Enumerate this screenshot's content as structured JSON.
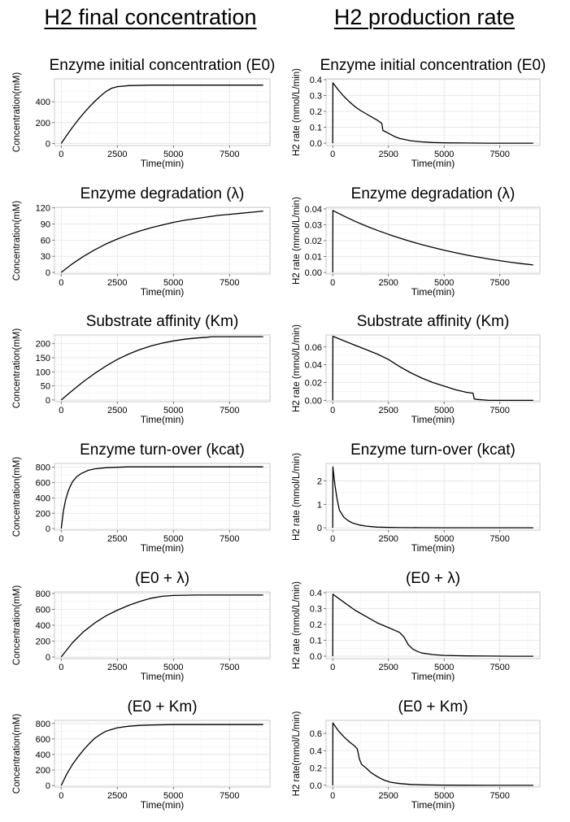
{
  "headers": {
    "left": "H2 final concentration",
    "right": "H2 production rate"
  },
  "chart_data": [
    {
      "type": "line",
      "title": "Enzyme initial concentration (E0)",
      "xlabel": "Time(min)",
      "ylabel": "Concentration(mM)",
      "xlim": [
        -300,
        9300
      ],
      "ylim": [
        -20,
        620
      ],
      "xticks": [
        0,
        2500,
        5000,
        7500
      ],
      "yticks": [
        0,
        200,
        400
      ],
      "ytick_labels": [
        "0",
        "200",
        "400"
      ],
      "grid": true,
      "series": [
        {
          "x": [
            0,
            250,
            500,
            750,
            1000,
            1250,
            1500,
            1750,
            2000,
            2250,
            2500,
            3000,
            4000,
            5000,
            6000,
            7000,
            8000,
            9000
          ],
          "y": [
            0,
            80,
            155,
            225,
            290,
            350,
            405,
            455,
            500,
            530,
            545,
            555,
            560,
            560,
            560,
            560,
            560,
            560
          ]
        }
      ]
    },
    {
      "type": "line",
      "title": "Enzyme initial concentration (E0)",
      "xlabel": "Time(min)",
      "ylabel": "H2 rate (mmol/L/min)",
      "xlim": [
        -300,
        9300
      ],
      "ylim": [
        -0.015,
        0.405
      ],
      "xticks": [
        0,
        2500,
        5000,
        7500
      ],
      "yticks": [
        0,
        0.1,
        0.2,
        0.3,
        0.4
      ],
      "ytick_labels": [
        "0.0",
        "0.1",
        "0.2",
        "0.3",
        "0.4"
      ],
      "grid": true,
      "series": [
        {
          "x": [
            0,
            5,
            250,
            500,
            750,
            1000,
            1250,
            1500,
            1750,
            2000,
            2200,
            2250,
            2400,
            2600,
            2800,
            3000,
            3500,
            4000,
            4500,
            5000,
            6000,
            7000,
            8000,
            9000
          ],
          "y": [
            0,
            0.38,
            0.335,
            0.295,
            0.26,
            0.23,
            0.205,
            0.185,
            0.165,
            0.145,
            0.125,
            0.08,
            0.07,
            0.055,
            0.04,
            0.03,
            0.015,
            0.008,
            0.004,
            0.002,
            0.001,
            0,
            0,
            0
          ]
        }
      ]
    },
    {
      "type": "line",
      "title": "Enzyme degradation (λ)",
      "xlabel": "Time(min)",
      "ylabel": "Concentration(mM)",
      "xlim": [
        -300,
        9300
      ],
      "ylim": [
        -3,
        121
      ],
      "xticks": [
        0,
        2500,
        5000,
        7500
      ],
      "yticks": [
        0,
        30,
        60,
        90,
        120
      ],
      "ytick_labels": [
        "0",
        "30",
        "60",
        "90",
        "120"
      ],
      "grid": true,
      "series": [
        {
          "x": [
            0,
            500,
            1000,
            1500,
            2000,
            2500,
            3000,
            3500,
            4000,
            4500,
            5000,
            5500,
            6000,
            6500,
            7000,
            7500,
            8000,
            8500,
            9000
          ],
          "y": [
            0,
            16,
            30,
            42,
            53,
            62,
            70,
            77,
            83,
            88,
            93,
            97,
            100,
            103,
            106,
            108,
            110,
            112,
            114
          ]
        }
      ]
    },
    {
      "type": "line",
      "title": "Enzyme degradation (λ)",
      "xlabel": "Time(min)",
      "ylabel": "H2 rate (mmol/L/min)",
      "xlim": [
        -300,
        9300
      ],
      "ylim": [
        -0.001,
        0.041
      ],
      "xticks": [
        0,
        2500,
        5000,
        7500
      ],
      "yticks": [
        0,
        0.01,
        0.02,
        0.03,
        0.04
      ],
      "ytick_labels": [
        "0.00",
        "0.01",
        "0.02",
        "0.03",
        "0.04"
      ],
      "grid": true,
      "series": [
        {
          "x": [
            0,
            5,
            500,
            1000,
            1500,
            2000,
            2500,
            3000,
            3500,
            4000,
            4500,
            5000,
            5500,
            6000,
            6500,
            7000,
            7500,
            8000,
            8500,
            9000
          ],
          "y": [
            0,
            0.039,
            0.0355,
            0.0322,
            0.0292,
            0.0265,
            0.024,
            0.0217,
            0.0195,
            0.0175,
            0.0157,
            0.014,
            0.0124,
            0.011,
            0.0097,
            0.0085,
            0.0074,
            0.0064,
            0.0055,
            0.0047
          ]
        }
      ]
    },
    {
      "type": "line",
      "title": "Substrate affinity (Km)",
      "xlabel": "Time(min)",
      "ylabel": "Concentration(mM)",
      "xlim": [
        -300,
        9300
      ],
      "ylim": [
        -6,
        231
      ],
      "xticks": [
        0,
        2500,
        5000,
        7500
      ],
      "yticks": [
        0,
        50,
        100,
        150,
        200
      ],
      "ytick_labels": [
        "0",
        "50",
        "100",
        "150",
        "200"
      ],
      "grid": true,
      "series": [
        {
          "x": [
            0,
            500,
            1000,
            1500,
            2000,
            2500,
            3000,
            3500,
            4000,
            4500,
            5000,
            5500,
            6000,
            6500,
            6700,
            7000,
            8000,
            9000
          ],
          "y": [
            0,
            34,
            66,
            95,
            121,
            144,
            163,
            179,
            192,
            202,
            210,
            216,
            220,
            223,
            225,
            225,
            225,
            225
          ]
        }
      ]
    },
    {
      "type": "line",
      "title": "Substrate affinity (Km)",
      "xlabel": "Time(min)",
      "ylabel": "H2 rate (mmol/L/min)",
      "xlim": [
        -300,
        9300
      ],
      "ylim": [
        -0.0015,
        0.0735
      ],
      "xticks": [
        0,
        2500,
        5000,
        7500
      ],
      "yticks": [
        0,
        0.02,
        0.04,
        0.06
      ],
      "ytick_labels": [
        "0.00",
        "0.02",
        "0.04",
        "0.06"
      ],
      "grid": true,
      "series": [
        {
          "x": [
            0,
            5,
            500,
            1000,
            1500,
            2000,
            2500,
            3000,
            3500,
            4000,
            4500,
            5000,
            5500,
            6000,
            6300,
            6350,
            6500,
            7000,
            8000,
            9000
          ],
          "y": [
            0,
            0.072,
            0.067,
            0.062,
            0.057,
            0.052,
            0.046,
            0.038,
            0.031,
            0.025,
            0.02,
            0.016,
            0.012,
            0.009,
            0.008,
            0.0015,
            0.001,
            0,
            0,
            0
          ]
        }
      ]
    },
    {
      "type": "line",
      "title": "Enzyme turn-over (kcat)",
      "xlabel": "Time(min)",
      "ylabel": "Concentration(mM)",
      "xlim": [
        -300,
        9300
      ],
      "ylim": [
        -20,
        850
      ],
      "xticks": [
        0,
        2500,
        5000,
        7500
      ],
      "yticks": [
        0,
        200,
        400,
        600,
        800
      ],
      "ytick_labels": [
        "0",
        "200",
        "400",
        "600",
        "800"
      ],
      "grid": true,
      "series": [
        {
          "x": [
            0,
            100,
            200,
            300,
            400,
            500,
            700,
            900,
            1200,
            1500,
            2000,
            2500,
            3000,
            4000,
            5000,
            6000,
            7000,
            8000,
            9000
          ],
          "y": [
            0,
            230,
            380,
            480,
            550,
            610,
            680,
            720,
            760,
            780,
            795,
            800,
            805,
            805,
            805,
            805,
            805,
            805,
            805
          ]
        }
      ]
    },
    {
      "type": "line",
      "title": "Enzyme turn-over (kcat)",
      "xlabel": "Time(min)",
      "ylabel": "H2 rate (mmol/L/min)",
      "xlim": [
        -300,
        9300
      ],
      "ylim": [
        -0.1,
        2.75
      ],
      "xticks": [
        0,
        2500,
        5000,
        7500
      ],
      "yticks": [
        0,
        1,
        2
      ],
      "ytick_labels": [
        "0",
        "1",
        "2"
      ],
      "grid": true,
      "series": [
        {
          "x": [
            0,
            5,
            100,
            200,
            300,
            400,
            500,
            700,
            900,
            1200,
            1500,
            2000,
            2500,
            3000,
            4000,
            5000,
            6000,
            7000,
            8000,
            9000
          ],
          "y": [
            0,
            2.6,
            1.8,
            1.2,
            0.75,
            0.6,
            0.45,
            0.3,
            0.2,
            0.12,
            0.07,
            0.03,
            0.015,
            0.008,
            0.004,
            0.002,
            0.001,
            0,
            0,
            0
          ]
        }
      ]
    },
    {
      "type": "line",
      "title": "(E0 + λ)",
      "xlabel": "Time(min)",
      "ylabel": "Concentration(mM)",
      "xlim": [
        -300,
        9300
      ],
      "ylim": [
        -20,
        820
      ],
      "xticks": [
        0,
        2500,
        5000,
        7500
      ],
      "yticks": [
        0,
        200,
        400,
        600,
        800
      ],
      "ytick_labels": [
        "0",
        "200",
        "400",
        "600",
        "800"
      ],
      "grid": true,
      "series": [
        {
          "x": [
            0,
            500,
            1000,
            1500,
            2000,
            2500,
            3000,
            3500,
            4000,
            4500,
            5000,
            6000,
            7000,
            8000,
            9000
          ],
          "y": [
            0,
            180,
            320,
            430,
            520,
            590,
            650,
            700,
            740,
            765,
            775,
            780,
            780,
            780,
            780
          ]
        }
      ]
    },
    {
      "type": "line",
      "title": "(E0 + λ)",
      "xlabel": "Time(min)",
      "ylabel": "H2 rate (mmol/L/min)",
      "xlim": [
        -300,
        9300
      ],
      "ylim": [
        -0.015,
        0.405
      ],
      "xticks": [
        0,
        2500,
        5000,
        7500
      ],
      "yticks": [
        0,
        0.1,
        0.2,
        0.3,
        0.4
      ],
      "ytick_labels": [
        "0.0",
        "0.1",
        "0.2",
        "0.3",
        "0.4"
      ],
      "grid": true,
      "series": [
        {
          "x": [
            0,
            5,
            500,
            1000,
            1500,
            2000,
            2500,
            3000,
            3200,
            3400,
            3600,
            3800,
            4000,
            4500,
            5000,
            6000,
            7000,
            8000,
            9000
          ],
          "y": [
            0,
            0.39,
            0.34,
            0.29,
            0.25,
            0.21,
            0.18,
            0.15,
            0.12,
            0.07,
            0.045,
            0.03,
            0.02,
            0.01,
            0.005,
            0.002,
            0.001,
            0,
            0
          ]
        }
      ]
    },
    {
      "type": "line",
      "title": "(E0 + Km)",
      "xlabel": "Time(min)",
      "ylabel": "Concentration(mM)",
      "xlim": [
        -300,
        9300
      ],
      "ylim": [
        -20,
        840
      ],
      "xticks": [
        0,
        2500,
        5000,
        7500
      ],
      "yticks": [
        0,
        200,
        400,
        600,
        800
      ],
      "ytick_labels": [
        "0",
        "200",
        "400",
        "600",
        "800"
      ],
      "grid": true,
      "series": [
        {
          "x": [
            0,
            250,
            500,
            750,
            1000,
            1250,
            1500,
            1750,
            2000,
            2500,
            3000,
            3500,
            4000,
            5000,
            6000,
            7000,
            8000,
            9000
          ],
          "y": [
            0,
            150,
            270,
            370,
            460,
            540,
            610,
            660,
            700,
            745,
            765,
            775,
            780,
            785,
            785,
            785,
            785,
            785
          ]
        }
      ]
    },
    {
      "type": "line",
      "title": "(E0 + Km)",
      "xlabel": "Time(min)",
      "ylabel": "H2 rate(mmol/L/min)",
      "xlim": [
        -300,
        9300
      ],
      "ylim": [
        -0.02,
        0.75
      ],
      "xticks": [
        0,
        2500,
        5000,
        7500
      ],
      "yticks": [
        0,
        0.2,
        0.4,
        0.6
      ],
      "ytick_labels": [
        "0.0",
        "0.2",
        "0.4",
        "0.6"
      ],
      "grid": true,
      "series": [
        {
          "x": [
            0,
            5,
            250,
            500,
            750,
            1000,
            1100,
            1200,
            1300,
            1500,
            1700,
            2000,
            2300,
            2600,
            3000,
            3500,
            4000,
            5000,
            6000,
            7000,
            8000,
            9000
          ],
          "y": [
            0,
            0.72,
            0.63,
            0.56,
            0.5,
            0.45,
            0.42,
            0.3,
            0.24,
            0.2,
            0.15,
            0.1,
            0.06,
            0.035,
            0.02,
            0.01,
            0.005,
            0.002,
            0.001,
            0,
            0,
            0
          ]
        }
      ]
    }
  ]
}
